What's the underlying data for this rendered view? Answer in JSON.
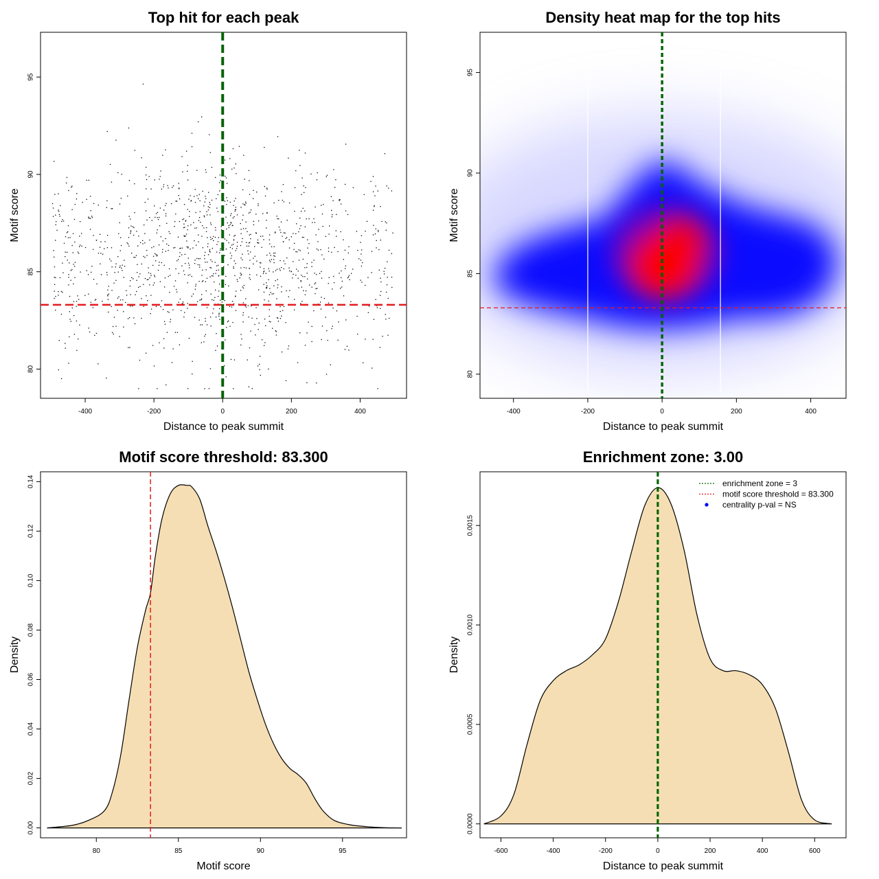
{
  "chart_data": [
    {
      "panel": "scatter",
      "type": "scatter",
      "title": "Top hit for each peak",
      "xlabel": "Distance to peak summit",
      "ylabel": "Motif score",
      "xlim": [
        -530,
        535
      ],
      "ylim": [
        78.5,
        97.3
      ],
      "xticks": [
        "-400",
        "-200",
        "0",
        "200",
        "400"
      ],
      "yticks": [
        "80",
        "85",
        "90",
        "95"
      ],
      "threshold": 83.3,
      "summit_lines": [
        -1.5,
        1.5
      ],
      "threshold_color": "#e31a1c",
      "summit_color": "#006400",
      "point_color": "#000000",
      "n_points": 1300,
      "note": "Scatter of ~1300 peaks over x in [-500, 500]; scores mostly 82–92, denser near x=0."
    },
    {
      "panel": "heatmap",
      "type": "heatmap",
      "title": "Density heat map for the top hits",
      "xlabel": "Distance to peak summit",
      "ylabel": "Motif score",
      "xlim": [
        -490,
        495
      ],
      "ylim": [
        78.8,
        97.0
      ],
      "xticks": [
        "-400",
        "-200",
        "0",
        "200",
        "400"
      ],
      "yticks": [
        "80",
        "85",
        "90",
        "95"
      ],
      "threshold": 83.3,
      "summit_lines": [
        -1.5,
        1.5
      ],
      "colors": [
        "#ffffff",
        "#0000ff",
        "#ff0000"
      ],
      "peak": {
        "x": 0,
        "y": 85
      }
    },
    {
      "panel": "score_density",
      "type": "area",
      "title": "Motif score threshold: 83.300",
      "xlabel": "Motif score",
      "ylabel": "Density",
      "xlim": [
        76.6,
        98.9
      ],
      "ylim": [
        -0.004,
        0.144
      ],
      "xticks": [
        "80",
        "85",
        "90",
        "95"
      ],
      "yticks": [
        "0.00",
        "0.02",
        "0.04",
        "0.06",
        "0.08",
        "0.10",
        "0.12",
        "0.14"
      ],
      "threshold": 83.3,
      "fill": "#f5deb3",
      "x": [
        77.0,
        78.5,
        79.5,
        80.5,
        81.0,
        81.5,
        82.0,
        82.5,
        83.0,
        83.3,
        83.6,
        84.0,
        84.5,
        85.0,
        85.5,
        85.8,
        86.3,
        86.8,
        87.3,
        87.8,
        88.3,
        88.8,
        89.3,
        89.8,
        90.3,
        90.8,
        91.3,
        91.8,
        92.3,
        92.8,
        93.3,
        93.8,
        94.5,
        95.5,
        96.5,
        97.5,
        98.6
      ],
      "y": [
        0.0,
        0.001,
        0.003,
        0.007,
        0.015,
        0.03,
        0.052,
        0.073,
        0.088,
        0.095,
        0.11,
        0.125,
        0.135,
        0.1385,
        0.1385,
        0.138,
        0.133,
        0.122,
        0.112,
        0.101,
        0.089,
        0.076,
        0.063,
        0.052,
        0.042,
        0.034,
        0.028,
        0.024,
        0.0215,
        0.018,
        0.012,
        0.007,
        0.003,
        0.0012,
        0.0005,
        0.0001,
        0.0
      ]
    },
    {
      "panel": "distance_density",
      "type": "area",
      "title": "Enrichment zone: 3.00",
      "xlabel": "Distance to peak summit",
      "ylabel": "Density",
      "xlim": [
        -680,
        720
      ],
      "ylim": [
        -7e-05,
        0.00177
      ],
      "xticks": [
        "-600",
        "-400",
        "-200",
        "0",
        "200",
        "400",
        "600"
      ],
      "yticks": [
        "0.0000",
        "0.0005",
        "0.0010",
        "0.0015"
      ],
      "summit_lines": [
        -1.5,
        1.5
      ],
      "fill": "#f5deb3",
      "x": [
        -665,
        -600,
        -550,
        -500,
        -450,
        -400,
        -350,
        -300,
        -250,
        -200,
        -150,
        -100,
        -50,
        0,
        50,
        100,
        150,
        200,
        250,
        300,
        350,
        400,
        450,
        500,
        550,
        600,
        665
      ],
      "y": [
        0.0,
        4e-05,
        0.00015,
        0.0004,
        0.00062,
        0.00072,
        0.00077,
        0.0008,
        0.00085,
        0.00093,
        0.00112,
        0.00137,
        0.0016,
        0.00169,
        0.00161,
        0.00138,
        0.00105,
        0.00083,
        0.00077,
        0.00077,
        0.00075,
        0.0007,
        0.00058,
        0.00036,
        0.00012,
        2e-05,
        0.0
      ],
      "legend": [
        {
          "label": "enrichment zone = 3",
          "style": "dotted",
          "color": "#006400"
        },
        {
          "label": "motif score threshold = 83.300",
          "style": "dotted",
          "color": "#e31a1c"
        },
        {
          "label": "centrality p-val = NS",
          "style": "point",
          "color": "#0000ff"
        }
      ],
      "legend_position": "top-right"
    }
  ]
}
